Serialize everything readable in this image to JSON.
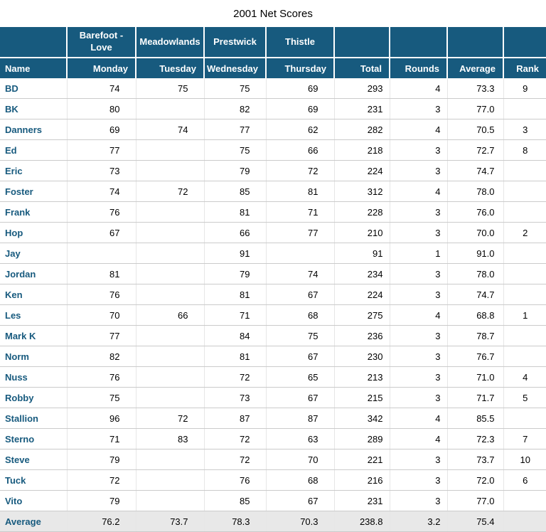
{
  "colors": {
    "header_bg": "#175A7E",
    "header_text": "#FFFFFF",
    "name_text": "#175A7E",
    "footer_bg": "#E8E8E8",
    "row_border": "#CBCBCB",
    "col_border": "#E6E6E6",
    "body_text": "#000000"
  },
  "chart_data": {
    "type": "table",
    "title": "2001 Net Scores",
    "course_headers": [
      "",
      "Barefoot - Love",
      "Meadowlands",
      "Prestwick",
      "Thistle",
      "",
      "",
      "",
      ""
    ],
    "column_headers": [
      "Name",
      "Monday",
      "Tuesday",
      "Wednesday",
      "Thursday",
      "Total",
      "Rounds",
      "Average",
      "Rank"
    ],
    "rows": [
      [
        "BD",
        "74",
        "75",
        "75",
        "69",
        "293",
        "4",
        "73.3",
        "9"
      ],
      [
        "BK",
        "80",
        "",
        "82",
        "69",
        "231",
        "3",
        "77.0",
        ""
      ],
      [
        "Danners",
        "69",
        "74",
        "77",
        "62",
        "282",
        "4",
        "70.5",
        "3"
      ],
      [
        "Ed",
        "77",
        "",
        "75",
        "66",
        "218",
        "3",
        "72.7",
        "8"
      ],
      [
        "Eric",
        "73",
        "",
        "79",
        "72",
        "224",
        "3",
        "74.7",
        ""
      ],
      [
        "Foster",
        "74",
        "72",
        "85",
        "81",
        "312",
        "4",
        "78.0",
        ""
      ],
      [
        "Frank",
        "76",
        "",
        "81",
        "71",
        "228",
        "3",
        "76.0",
        ""
      ],
      [
        "Hop",
        "67",
        "",
        "66",
        "77",
        "210",
        "3",
        "70.0",
        "2"
      ],
      [
        "Jay",
        "",
        "",
        "91",
        "",
        "91",
        "1",
        "91.0",
        ""
      ],
      [
        "Jordan",
        "81",
        "",
        "79",
        "74",
        "234",
        "3",
        "78.0",
        ""
      ],
      [
        "Ken",
        "76",
        "",
        "81",
        "67",
        "224",
        "3",
        "74.7",
        ""
      ],
      [
        "Les",
        "70",
        "66",
        "71",
        "68",
        "275",
        "4",
        "68.8",
        "1"
      ],
      [
        "Mark K",
        "77",
        "",
        "84",
        "75",
        "236",
        "3",
        "78.7",
        ""
      ],
      [
        "Norm",
        "82",
        "",
        "81",
        "67",
        "230",
        "3",
        "76.7",
        ""
      ],
      [
        "Nuss",
        "76",
        "",
        "72",
        "65",
        "213",
        "3",
        "71.0",
        "4"
      ],
      [
        "Robby",
        "75",
        "",
        "73",
        "67",
        "215",
        "3",
        "71.7",
        "5"
      ],
      [
        "Stallion",
        "96",
        "72",
        "87",
        "87",
        "342",
        "4",
        "85.5",
        ""
      ],
      [
        "Sterno",
        "71",
        "83",
        "72",
        "63",
        "289",
        "4",
        "72.3",
        "7"
      ],
      [
        "Steve",
        "79",
        "",
        "72",
        "70",
        "221",
        "3",
        "73.7",
        "10"
      ],
      [
        "Tuck",
        "72",
        "",
        "76",
        "68",
        "216",
        "3",
        "72.0",
        "6"
      ],
      [
        "Vito",
        "79",
        "",
        "85",
        "67",
        "231",
        "3",
        "77.0",
        ""
      ]
    ],
    "footer": [
      "Average",
      "76.2",
      "73.7",
      "78.3",
      "70.3",
      "238.8",
      "3.2",
      "75.4",
      ""
    ]
  }
}
